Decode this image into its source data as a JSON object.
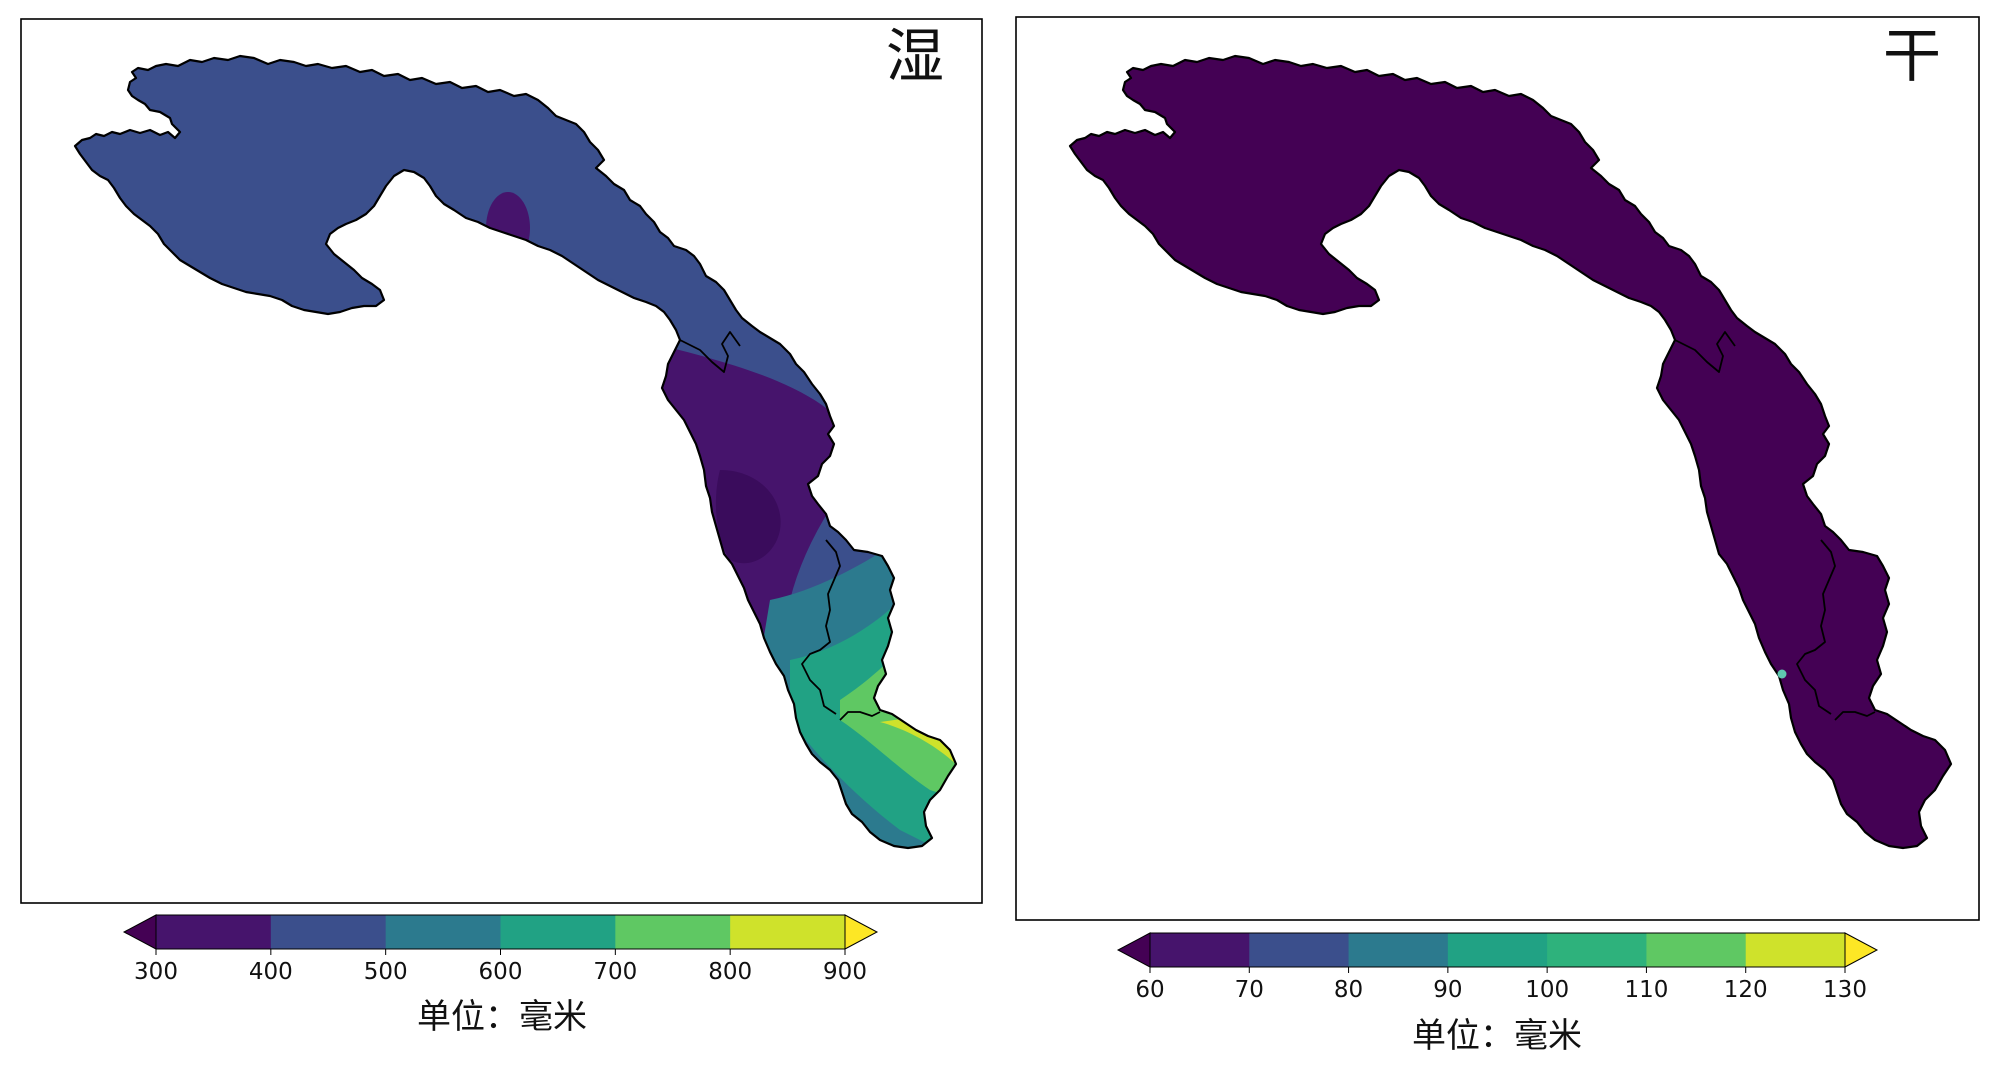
{
  "panels": [
    {
      "title": "湿",
      "colorbar": {
        "ticks": [
          "300",
          "400",
          "500",
          "600",
          "700",
          "800",
          "900"
        ],
        "colors": [
          "#46146c",
          "#3b4f8c",
          "#2c7a8e",
          "#21a284",
          "#5fc863",
          "#cfe22b"
        ],
        "under_color": "#440154",
        "over_color": "#fde725",
        "unit_label": "单位：毫米"
      },
      "fill_levels": {
        "basin": "#3b4f8c",
        "purple_zone": "#46146c",
        "dark_core": "#3a0c5c",
        "teal": "#2c7a8e",
        "green_teal": "#21a284",
        "green": "#5fc863",
        "yellow": "#cfe22b"
      }
    },
    {
      "title": "干",
      "colorbar": {
        "ticks": [
          "60",
          "70",
          "80",
          "90",
          "100",
          "110",
          "120",
          "130"
        ],
        "colors": [
          "#46146c",
          "#3b4f8c",
          "#2c7a8e",
          "#21a284",
          "#2eb27c",
          "#5fc863",
          "#cfe22b"
        ],
        "under_color": "#440154",
        "over_color": "#fde725",
        "unit_label": "单位：毫米"
      },
      "fill_levels": {
        "basin": "#440154",
        "hotspot": "#5fc8b0"
      }
    }
  ]
}
